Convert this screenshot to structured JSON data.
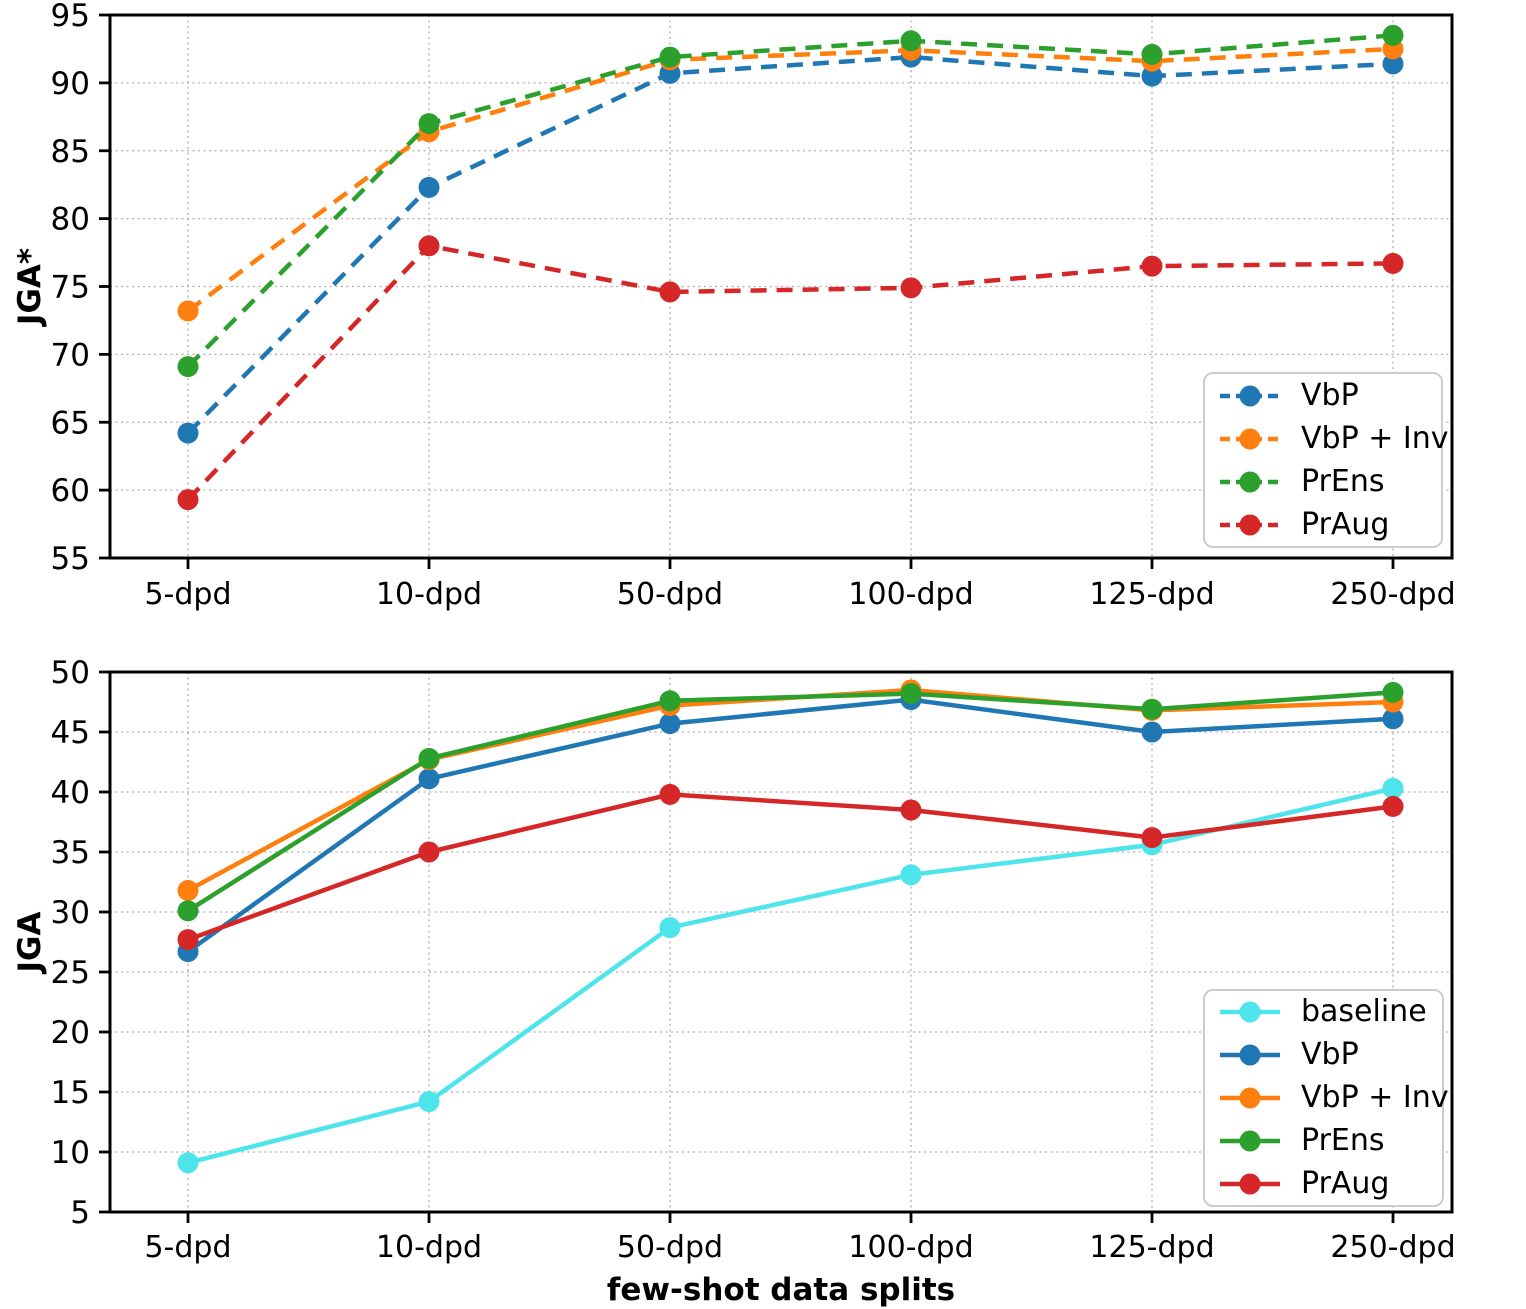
{
  "figure": {
    "xlabel": "few-shot data splits",
    "background_color": "#ffffff",
    "axis_color": "#000000",
    "grid_color": "#b0b0b0"
  },
  "chart_data": [
    {
      "type": "line",
      "panel": "top",
      "title": "",
      "xlabel": "",
      "ylabel": "JGA*",
      "categories": [
        "5-dpd",
        "10-dpd",
        "50-dpd",
        "100-dpd",
        "125-dpd",
        "250-dpd"
      ],
      "ylim": [
        55,
        95
      ],
      "yticks": [
        55,
        60,
        65,
        70,
        75,
        80,
        85,
        90,
        95
      ],
      "grid": true,
      "line_style": "dashed",
      "marker": "circle",
      "legend_position": "lower right",
      "series": [
        {
          "name": "VbP",
          "color": "#1f77b4",
          "values": [
            64.2,
            82.3,
            90.7,
            91.9,
            90.5,
            91.4
          ]
        },
        {
          "name": "VbP + Inv",
          "color": "#ff7f0e",
          "values": [
            73.2,
            86.4,
            91.7,
            92.4,
            91.6,
            92.5
          ]
        },
        {
          "name": "PrEns",
          "color": "#2ca02c",
          "values": [
            69.1,
            87.0,
            91.9,
            93.1,
            92.1,
            93.5
          ]
        },
        {
          "name": "PrAug",
          "color": "#d62728",
          "values": [
            59.3,
            78.0,
            74.6,
            74.9,
            76.5,
            76.7
          ]
        }
      ]
    },
    {
      "type": "line",
      "panel": "bottom",
      "title": "",
      "xlabel": "few-shot data splits",
      "ylabel": "JGA",
      "categories": [
        "5-dpd",
        "10-dpd",
        "50-dpd",
        "100-dpd",
        "125-dpd",
        "250-dpd"
      ],
      "ylim": [
        5,
        50
      ],
      "yticks": [
        5,
        10,
        15,
        20,
        25,
        30,
        35,
        40,
        45,
        50
      ],
      "grid": true,
      "line_style": "solid",
      "marker": "circle",
      "legend_position": "lower right",
      "series": [
        {
          "name": "baseline",
          "color": "#4de4ec",
          "values": [
            9.1,
            14.2,
            28.7,
            33.1,
            35.6,
            40.3
          ]
        },
        {
          "name": "VbP",
          "color": "#1f77b4",
          "values": [
            26.7,
            41.1,
            45.7,
            47.7,
            45.0,
            46.1
          ]
        },
        {
          "name": "VbP + Inv",
          "color": "#ff7f0e",
          "values": [
            31.8,
            42.7,
            47.2,
            48.5,
            46.8,
            47.5
          ]
        },
        {
          "name": "PrEns",
          "color": "#2ca02c",
          "values": [
            30.1,
            42.8,
            47.6,
            48.2,
            46.9,
            48.3
          ]
        },
        {
          "name": "PrAug",
          "color": "#d62728",
          "values": [
            27.7,
            35.0,
            39.8,
            38.5,
            36.2,
            38.8
          ]
        }
      ]
    }
  ]
}
